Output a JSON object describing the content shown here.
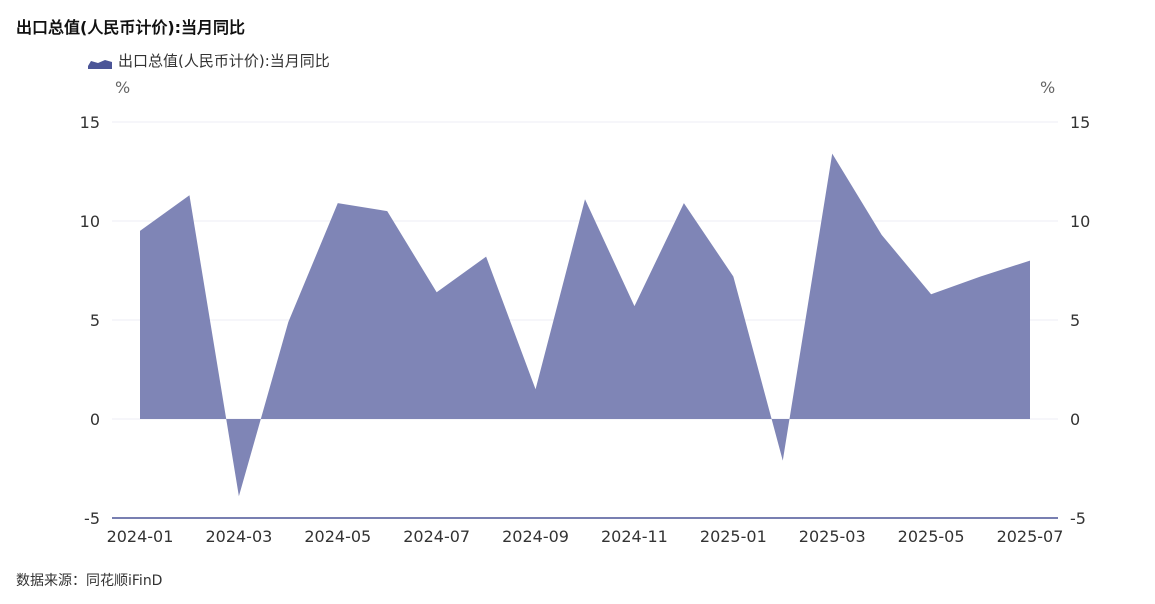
{
  "title": "出口总值(人民币计价):当月同比",
  "legend_label": "出口总值(人民币计价):当月同比",
  "source": "数据来源：同花顺iFinD",
  "colors": {
    "area": "#7f85b6",
    "legend": "#4b5597",
    "grid": "#eceef5",
    "axis": "#4b5597"
  },
  "chart_data": {
    "type": "area",
    "title": "出口总值(人民币计价):当月同比",
    "ylabel_left": "%",
    "ylabel_right": "%",
    "ylim": [
      -5,
      15
    ],
    "yticks": [
      15,
      10,
      5,
      0,
      -5
    ],
    "x": [
      "2024-01",
      "2024-02",
      "2024-03",
      "2024-04",
      "2024-05",
      "2024-06",
      "2024-07",
      "2024-08",
      "2024-09",
      "2024-10",
      "2024-11",
      "2024-12",
      "2025-01",
      "2025-02",
      "2025-03",
      "2025-04",
      "2025-05",
      "2025-06",
      "2025-07"
    ],
    "xtick_labels": [
      "2024-01",
      "2024-03",
      "2024-05",
      "2024-07",
      "2024-09",
      "2024-11",
      "2025-01",
      "2025-03",
      "2025-05",
      "2025-07"
    ],
    "series": [
      {
        "name": "出口总值(人民币计价):当月同比",
        "values": [
          9.5,
          11.3,
          -3.9,
          4.9,
          10.9,
          10.5,
          6.4,
          8.2,
          1.5,
          11.1,
          5.7,
          10.9,
          7.2,
          -2.1,
          13.4,
          9.3,
          6.3,
          7.2,
          8.0
        ]
      }
    ],
    "grid": true
  }
}
